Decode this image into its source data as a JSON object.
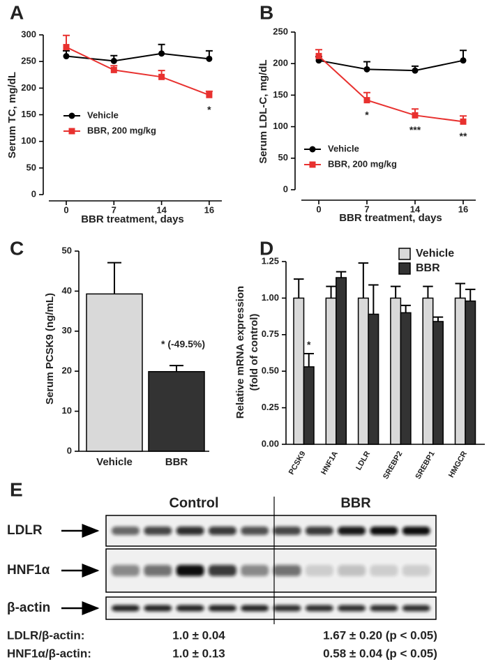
{
  "chart_data": [
    {
      "type": "line",
      "panel": "A",
      "ylabel": [
        "Serum TC, mg/dL"
      ],
      "xlabel": "BBR treatment, days",
      "categories": [
        "0",
        "7",
        "14",
        "16"
      ],
      "series": [
        {
          "name": "Vehicle",
          "color": "#000000",
          "marker": "circle",
          "values": [
            260,
            251,
            265,
            255
          ],
          "errors": [
            10,
            10,
            17,
            15
          ]
        },
        {
          "name": "BBR, 200 mg/kg",
          "color": "#e8312f",
          "marker": "square",
          "values": [
            277,
            234,
            221,
            187
          ],
          "errors": [
            22,
            8,
            12,
            7
          ]
        }
      ],
      "ylim": [
        0,
        300
      ],
      "yticks": [
        0,
        50,
        100,
        150,
        200,
        250,
        300
      ],
      "legend": "center-left",
      "annotations": [
        {
          "text": "*",
          "x": "16",
          "series": "BBR, 200 mg/kg"
        }
      ]
    },
    {
      "type": "line",
      "panel": "B",
      "ylabel": [
        "Serum LDL-C, mg/dL"
      ],
      "xlabel": "BBR treatment, days",
      "categories": [
        "0",
        "7",
        "14",
        "16"
      ],
      "series": [
        {
          "name": "Vehicle",
          "color": "#000000",
          "marker": "circle",
          "values": [
            205,
            191,
            189,
            205
          ],
          "errors": [
            6,
            12,
            7,
            16
          ]
        },
        {
          "name": "BBR, 200 mg/kg",
          "color": "#e8312f",
          "marker": "square",
          "values": [
            212,
            142,
            118,
            108
          ],
          "errors": [
            10,
            12,
            10,
            9
          ]
        }
      ],
      "ylim": [
        0,
        250
      ],
      "yticks": [
        0,
        50,
        100,
        150,
        200,
        250
      ],
      "legend": "lower-left",
      "annotations": [
        {
          "text": "*",
          "x": "7",
          "series": "BBR, 200 mg/kg"
        },
        {
          "text": "***",
          "x": "14",
          "series": "BBR, 200 mg/kg"
        },
        {
          "text": "**",
          "x": "16",
          "series": "BBR, 200 mg/kg"
        }
      ]
    },
    {
      "type": "bar",
      "panel": "C",
      "ylabel": [
        "Serum PCSK9 (ng/mL)"
      ],
      "categories": [
        "Vehicle",
        "BBR"
      ],
      "series": [
        {
          "colors": [
            "#d9d9d9",
            "#333333"
          ],
          "values": [
            39.3,
            19.9
          ],
          "errors": [
            7.8,
            1.5
          ]
        }
      ],
      "ylim": [
        0,
        50
      ],
      "yticks": [
        0,
        10,
        20,
        30,
        40,
        50
      ],
      "annotations": [
        {
          "text": "* (-49.5%)",
          "x": "BBR"
        }
      ]
    },
    {
      "type": "bar",
      "panel": "D",
      "ylabel": [
        "Relative mRNA expression",
        "(fold of control)"
      ],
      "categories": [
        "PCSK9",
        "HNF1A",
        "LDLR",
        "SREBP2",
        "SREBP1",
        "HMGCR"
      ],
      "series": [
        {
          "name": "Vehicle",
          "color": "#d9d9d9",
          "values": [
            1.0,
            1.0,
            1.0,
            1.0,
            1.0,
            1.0
          ],
          "errors": [
            0.13,
            0.08,
            0.24,
            0.08,
            0.08,
            0.1
          ]
        },
        {
          "name": "BBR",
          "color": "#333333",
          "values": [
            0.53,
            1.14,
            0.89,
            0.9,
            0.84,
            0.98
          ],
          "errors": [
            0.09,
            0.04,
            0.2,
            0.05,
            0.03,
            0.08
          ]
        }
      ],
      "ylim": [
        0,
        1.25
      ],
      "yticks": [
        {
          "value": 0,
          "label": "0.00"
        },
        {
          "value": 0.25,
          "label": "0.25"
        },
        {
          "value": 0.5,
          "label": "0.50"
        },
        {
          "value": 0.75,
          "label": "0.75"
        },
        {
          "value": 1,
          "label": "1.00"
        },
        {
          "value": 1.25,
          "label": "1.25"
        }
      ],
      "legend": "upper-right",
      "annotations": [
        {
          "text": "*",
          "x": "PCSK9",
          "series": "BBR"
        }
      ]
    }
  ],
  "blot": {
    "panel": "E",
    "groups": [
      "Control",
      "BBR"
    ],
    "rows": [
      "LDLR",
      "HNF1α",
      "β-actin"
    ],
    "quantification": [
      {
        "label": "LDLR/β-actin:",
        "values": [
          "1.0 ± 0.04",
          "1.67 ± 0.20 (p < 0.05)"
        ]
      },
      {
        "label": "HNF1α/β-actin:",
        "values": [
          "1.0 ± 0.13",
          "0.58 ± 0.04 (p < 0.05)"
        ]
      }
    ]
  }
}
